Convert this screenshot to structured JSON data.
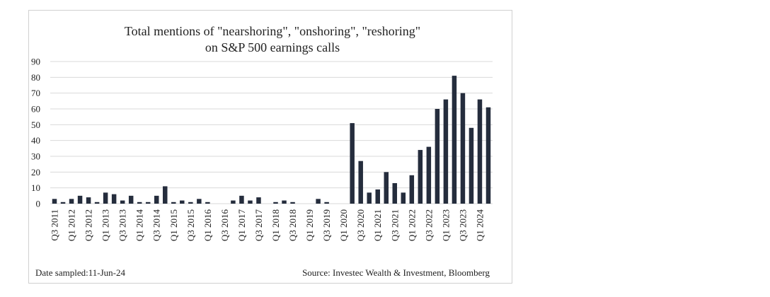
{
  "chart_data": {
    "type": "bar",
    "title": [
      "Total mentions of \"nearshoring\", \"onshoring\", \"reshoring\"",
      "on S&P 500 earnings calls"
    ],
    "categories": [
      "Q3 2011",
      null,
      "Q1 2012",
      null,
      "Q3 2012",
      null,
      "Q1 2013",
      null,
      "Q3 2013",
      null,
      "Q1 2014",
      null,
      "Q3 2014",
      null,
      "Q1 2015",
      null,
      "Q3 2015",
      null,
      "Q1 2016",
      null,
      "Q3 2016",
      null,
      "Q1 2017",
      null,
      "Q3 2017",
      null,
      "Q1 2018",
      null,
      "Q3 2018",
      null,
      "Q1 2019",
      null,
      "Q3 2019",
      null,
      "Q1 2020",
      null,
      "Q3 2020",
      null,
      "Q1 2021",
      null,
      "Q3 2021",
      null,
      "Q1 2022",
      null,
      "Q3 2022",
      null,
      "Q1 2023",
      null,
      "Q3 2023",
      null,
      "Q1 2024",
      null
    ],
    "values": [
      3,
      1,
      3,
      5,
      4,
      1,
      7,
      6,
      2,
      5,
      1,
      1,
      5,
      11,
      1,
      2,
      1,
      3,
      1,
      0,
      0,
      2,
      5,
      2,
      4,
      0,
      1,
      2,
      1,
      0,
      0,
      3,
      1,
      0,
      0,
      51,
      27,
      7,
      9,
      20,
      13,
      7,
      18,
      34,
      36,
      60,
      66,
      81,
      70,
      48,
      66,
      61
    ],
    "color": "#252d3d",
    "ylim": [
      0,
      90
    ],
    "yticks": [
      0,
      10,
      20,
      30,
      40,
      50,
      60,
      70,
      80,
      90
    ],
    "grid": true,
    "footnote": "Date sampled:11-Jun-24",
    "source": "Source: Investec Wealth & Investment, Bloomberg"
  }
}
